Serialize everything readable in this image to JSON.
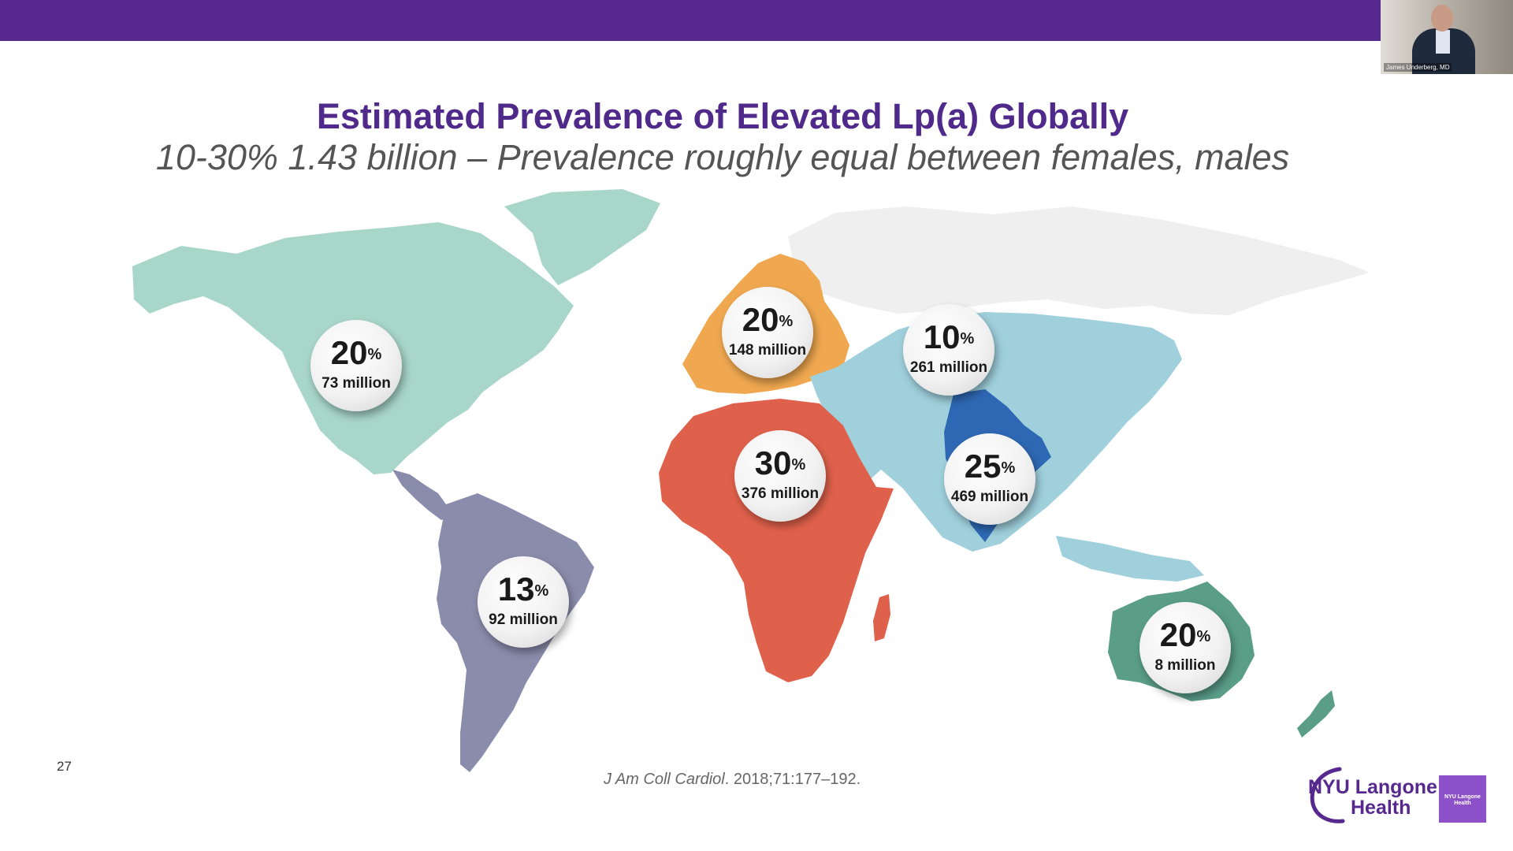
{
  "slide": {
    "title": "Estimated Prevalence of Elevated Lp(a) Globally",
    "subtitle": "10-30% 1.43 billion – Prevalence roughly equal between females, males",
    "slide_number": "27",
    "citation_journal": "J Am Coll Cardiol",
    "citation_rest": ". 2018;71:177–192."
  },
  "regions": [
    {
      "name": "North America",
      "percent": "20",
      "population": "73 million",
      "color": "#a8d6c8"
    },
    {
      "name": "Europe",
      "percent": "20",
      "population": "148 million",
      "color": "#f0a850"
    },
    {
      "name": "Asia",
      "percent": "10",
      "population": "261 million",
      "color": "#9fd0dc"
    },
    {
      "name": "Africa",
      "percent": "30",
      "population": "376 million",
      "color": "#e0614b"
    },
    {
      "name": "South Asia",
      "percent": "25",
      "population": "469 million",
      "color": "#2e68b4"
    },
    {
      "name": "Latin America",
      "percent": "13",
      "population": "92 million",
      "color": "#8a8cab"
    },
    {
      "name": "Australia",
      "percent": "20",
      "population": "8 million",
      "color": "#5a9e88"
    }
  ],
  "percent_symbol": "%",
  "webcam": {
    "name_label": "James Underberg, MD"
  },
  "logo": {
    "line1": "NYU Langone",
    "line2": "Health",
    "box_text": "NYU Langone Health"
  },
  "colors": {
    "brand_purple": "#57298e",
    "russia_grey": "#efefef"
  }
}
